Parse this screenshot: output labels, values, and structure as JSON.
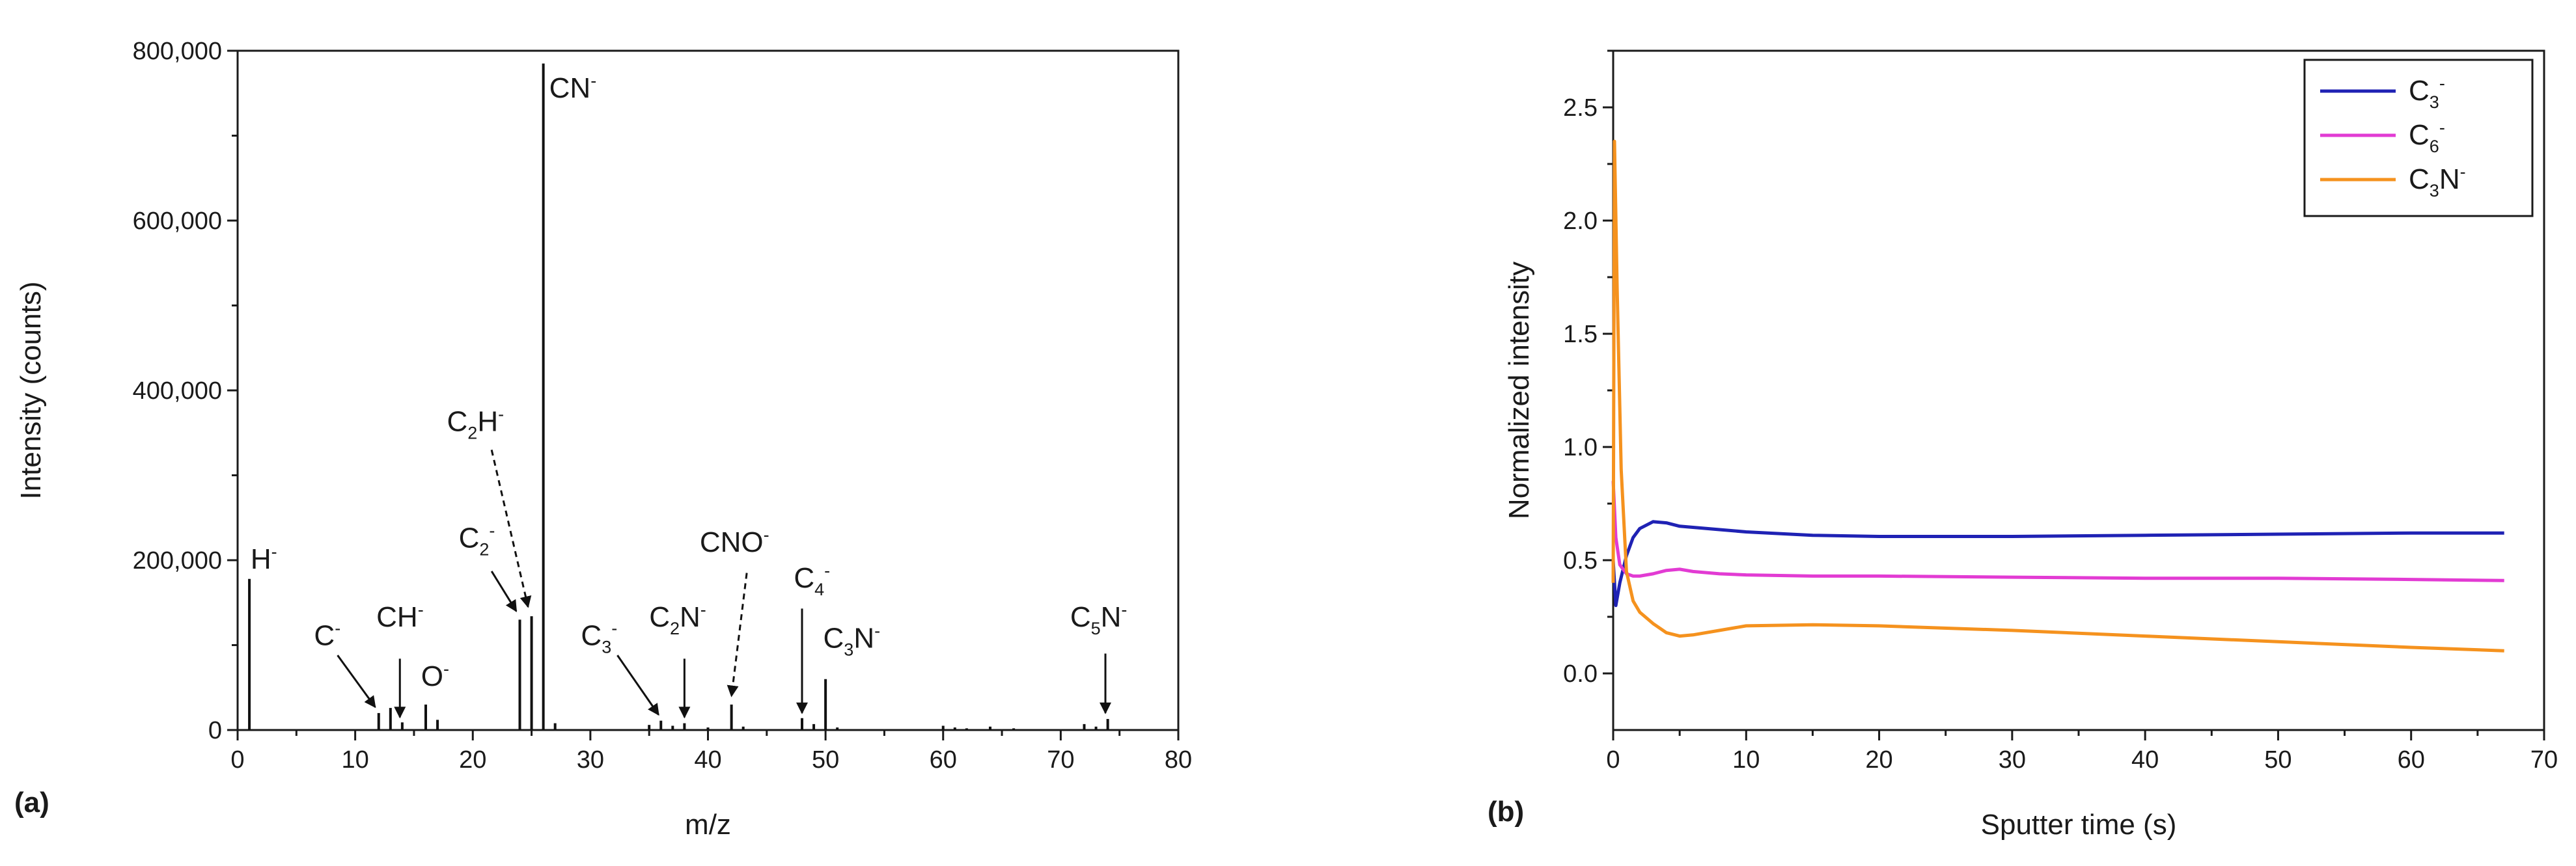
{
  "chart_data": [
    {
      "type": "bar",
      "panel_label": "(a)",
      "xlabel": "m/z",
      "ylabel": "Intensity (counts)",
      "xlim": [
        0,
        80
      ],
      "ylim": [
        0,
        800000
      ],
      "x_ticks": [
        0,
        10,
        20,
        30,
        40,
        50,
        60,
        70,
        80
      ],
      "x_tick_labels": [
        "0",
        "10",
        "20",
        "30",
        "40",
        "50",
        "60",
        "70",
        "80"
      ],
      "y_ticks": [
        0,
        200000,
        400000,
        600000,
        800000
      ],
      "y_tick_labels": [
        "0",
        "200,000",
        "400,000",
        "600,000",
        "800,000"
      ],
      "peaks": [
        {
          "mz": 1,
          "value": 178000
        },
        {
          "mz": 12,
          "value": 20000
        },
        {
          "mz": 13,
          "value": 26000
        },
        {
          "mz": 14,
          "value": 9000
        },
        {
          "mz": 16,
          "value": 30000
        },
        {
          "mz": 17,
          "value": 12000
        },
        {
          "mz": 24,
          "value": 130000
        },
        {
          "mz": 25,
          "value": 134000
        },
        {
          "mz": 26,
          "value": 785000
        },
        {
          "mz": 27,
          "value": 8000
        },
        {
          "mz": 35,
          "value": 6000
        },
        {
          "mz": 36,
          "value": 11000
        },
        {
          "mz": 37,
          "value": 5000
        },
        {
          "mz": 38,
          "value": 8000
        },
        {
          "mz": 40,
          "value": 3000
        },
        {
          "mz": 42,
          "value": 30000
        },
        {
          "mz": 43,
          "value": 4000
        },
        {
          "mz": 48,
          "value": 14000
        },
        {
          "mz": 49,
          "value": 7000
        },
        {
          "mz": 50,
          "value": 60000
        },
        {
          "mz": 51,
          "value": 3000
        },
        {
          "mz": 60,
          "value": 5000
        },
        {
          "mz": 61,
          "value": 3000
        },
        {
          "mz": 62,
          "value": 2000
        },
        {
          "mz": 64,
          "value": 4000
        },
        {
          "mz": 66,
          "value": 2000
        },
        {
          "mz": 72,
          "value": 7000
        },
        {
          "mz": 73,
          "value": 4000
        },
        {
          "mz": 74,
          "value": 13000
        }
      ],
      "annotations": [
        {
          "base": "H",
          "sub": "",
          "sup": "-",
          "x": 1,
          "y": 178000,
          "text_pos": [
            1.1,
            190000
          ],
          "arrow": "none"
        },
        {
          "base": "C",
          "sub": "",
          "sup": "-",
          "x": 12,
          "y": 20000,
          "text_pos": [
            6.5,
            100000
          ],
          "arrow": "solid",
          "arrow_from": [
            8.5,
            88000
          ],
          "arrow_to": [
            11.7,
            27000
          ]
        },
        {
          "base": "CH",
          "sub": "",
          "sup": "-",
          "x": 14,
          "y": 9000,
          "text_pos": [
            11.8,
            122000
          ],
          "arrow": "solid",
          "arrow_from": [
            13.8,
            84000
          ],
          "arrow_to": [
            13.8,
            15000
          ]
        },
        {
          "base": "O",
          "sub": "",
          "sup": "-",
          "x": 16,
          "y": 30000,
          "text_pos": [
            15.6,
            52000
          ],
          "arrow": "none"
        },
        {
          "base": "C",
          "sub": "2",
          "sup": "-",
          "x": 24,
          "y": 130000,
          "text_pos": [
            18.8,
            215000
          ],
          "arrow": "solid",
          "arrow_from": [
            21.6,
            187000
          ],
          "arrow_to": [
            23.7,
            140000
          ]
        },
        {
          "base": "C",
          "sub": "2",
          "sup": "H-",
          "x": 25,
          "y": 134000,
          "text_pos": [
            17.8,
            352000
          ],
          "arrow": "dashed",
          "arrow_from": [
            21.6,
            330000
          ],
          "arrow_to": [
            24.7,
            145000
          ]
        },
        {
          "base": "CN",
          "sub": "",
          "sup": "-",
          "x": 26,
          "y": 785000,
          "text_pos": [
            26.5,
            745000
          ],
          "arrow": "none"
        },
        {
          "base": "C",
          "sub": "3",
          "sup": "-",
          "x": 36,
          "y": 11000,
          "text_pos": [
            29.2,
            100000
          ],
          "arrow": "solid",
          "arrow_from": [
            32.3,
            88000
          ],
          "arrow_to": [
            35.8,
            18000
          ]
        },
        {
          "base": "C",
          "sub": "2",
          "sup": "N-",
          "x": 38,
          "y": 8000,
          "text_pos": [
            35.0,
            122000
          ],
          "arrow": "solid",
          "arrow_from": [
            38.0,
            84000
          ],
          "arrow_to": [
            38.0,
            15000
          ]
        },
        {
          "base": "CNO",
          "sub": "",
          "sup": "-",
          "x": 42,
          "y": 30000,
          "text_pos": [
            39.3,
            210000
          ],
          "arrow": "dashed",
          "arrow_from": [
            43.3,
            185000
          ],
          "arrow_to": [
            42.0,
            40000
          ]
        },
        {
          "base": "C",
          "sub": "4",
          "sup": "-",
          "x": 48,
          "y": 14000,
          "text_pos": [
            47.3,
            168000
          ],
          "arrow": "solid",
          "arrow_from": [
            48.0,
            143000
          ],
          "arrow_to": [
            48.0,
            20000
          ]
        },
        {
          "base": "C",
          "sub": "3",
          "sup": "N-",
          "x": 50,
          "y": 60000,
          "text_pos": [
            49.8,
            97000
          ],
          "arrow": "none"
        },
        {
          "base": "C",
          "sub": "5",
          "sup": "N-",
          "x": 74,
          "y": 13000,
          "text_pos": [
            70.8,
            122000
          ],
          "arrow": "solid",
          "arrow_from": [
            73.8,
            90000
          ],
          "arrow_to": [
            73.8,
            20000
          ]
        }
      ]
    },
    {
      "type": "line",
      "panel_label": "(b)",
      "xlabel": "Sputter time (s)",
      "ylabel": "Normalized intensity",
      "xlim": [
        0,
        70
      ],
      "ylim": [
        -0.25,
        2.75
      ],
      "x_ticks": [
        0,
        10,
        20,
        30,
        40,
        50,
        60,
        70
      ],
      "x_tick_labels": [
        "0",
        "10",
        "20",
        "30",
        "40",
        "50",
        "60",
        "70"
      ],
      "y_ticks": [
        0.0,
        0.5,
        1.0,
        1.5,
        2.0,
        2.5
      ],
      "y_tick_labels": [
        "0.0",
        "0.5",
        "1.0",
        "1.5",
        "2.0",
        "2.5"
      ],
      "legend_position": "top-right",
      "series": [
        {
          "name_base": "C",
          "name_sub": "3",
          "name_sup": "-",
          "color": "#1f22b4",
          "x": [
            0,
            0.2,
            0.5,
            1,
            1.5,
            2,
            3,
            4,
            5,
            6,
            8,
            10,
            15,
            20,
            25,
            30,
            40,
            50,
            60,
            67
          ],
          "y": [
            0.5,
            0.3,
            0.4,
            0.52,
            0.6,
            0.64,
            0.67,
            0.665,
            0.65,
            0.645,
            0.635,
            0.625,
            0.61,
            0.605,
            0.605,
            0.605,
            0.61,
            0.615,
            0.62,
            0.62
          ]
        },
        {
          "name_base": "C",
          "name_sub": "6",
          "name_sup": "-",
          "color": "#e23bd3",
          "x": [
            0,
            0.2,
            0.5,
            1,
            1.5,
            2,
            3,
            4,
            5,
            6,
            8,
            10,
            15,
            20,
            30,
            40,
            50,
            60,
            67
          ],
          "y": [
            0.85,
            0.6,
            0.48,
            0.44,
            0.43,
            0.43,
            0.44,
            0.455,
            0.46,
            0.45,
            0.44,
            0.435,
            0.43,
            0.43,
            0.425,
            0.42,
            0.42,
            0.415,
            0.41
          ]
        },
        {
          "name_base": "C",
          "name_sub": "3",
          "name_sup": "N-",
          "color": "#f5921e",
          "x": [
            0,
            0.1,
            0.3,
            0.6,
            1,
            1.5,
            2,
            3,
            4,
            5,
            6,
            8,
            10,
            15,
            20,
            30,
            40,
            50,
            60,
            67
          ],
          "y": [
            0.4,
            2.35,
            1.7,
            0.9,
            0.45,
            0.32,
            0.27,
            0.22,
            0.18,
            0.165,
            0.17,
            0.19,
            0.21,
            0.215,
            0.21,
            0.19,
            0.165,
            0.14,
            0.115,
            0.1
          ]
        }
      ]
    }
  ]
}
